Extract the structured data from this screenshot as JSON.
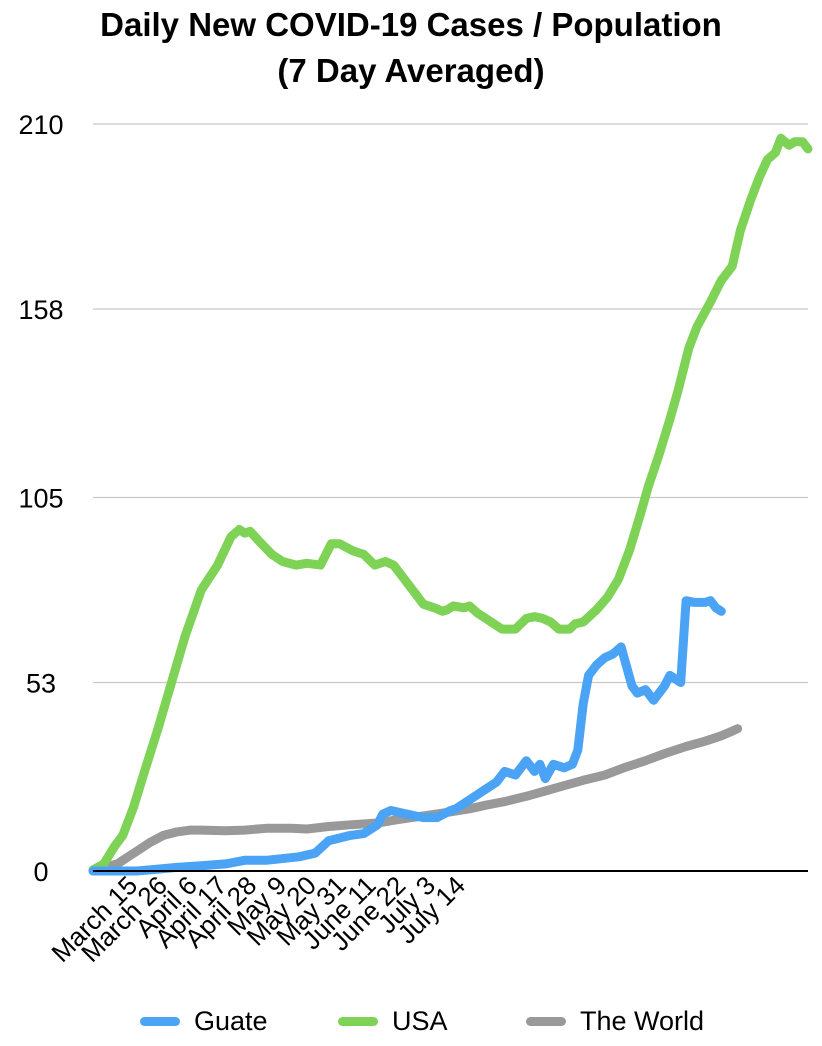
{
  "chart_data": {
    "type": "line",
    "title_line1": "Daily New COVID-19 Cases / Population",
    "title_line2": "(7 Day Averaged)",
    "y_ticks": [
      "0",
      "53",
      "105",
      "158",
      "210"
    ],
    "ylim": [
      0,
      210
    ],
    "x_tick_labels": [
      "March 15",
      "March 26",
      "April 6",
      "April 17",
      "April 28",
      "May 9",
      "May 20",
      "May 31",
      "June 11",
      "June 22",
      "July 3",
      "July 14"
    ],
    "grid": true,
    "legend_position": "bottom",
    "series": [
      {
        "name": "Guate",
        "color": "#4aa3f5",
        "values": [
          [
            0,
            0
          ],
          [
            9,
            0
          ],
          [
            16,
            0
          ],
          [
            21,
            0.3
          ],
          [
            31,
            1
          ],
          [
            40,
            1.5
          ],
          [
            49,
            2
          ],
          [
            56,
            3
          ],
          [
            64,
            3
          ],
          [
            76,
            4
          ],
          [
            82,
            5
          ],
          [
            87,
            8.5
          ],
          [
            95,
            10
          ],
          [
            100,
            10.5
          ],
          [
            105,
            13
          ],
          [
            107,
            16
          ],
          [
            110,
            17
          ],
          [
            116,
            16
          ],
          [
            122,
            15
          ],
          [
            127,
            15
          ],
          [
            132,
            17
          ],
          [
            134,
            17.5
          ],
          [
            139,
            20
          ],
          [
            143,
            22
          ],
          [
            145,
            23
          ],
          [
            149,
            25
          ],
          [
            152,
            28
          ],
          [
            156,
            27
          ],
          [
            160,
            31
          ],
          [
            163,
            28
          ],
          [
            165,
            30
          ],
          [
            167,
            26
          ],
          [
            170,
            30
          ],
          [
            174,
            29
          ],
          [
            177,
            30
          ],
          [
            179,
            34
          ],
          [
            181,
            47
          ],
          [
            183,
            55
          ],
          [
            186,
            58
          ],
          [
            189,
            60
          ],
          [
            192,
            61
          ],
          [
            195,
            63
          ],
          [
            199,
            52
          ],
          [
            201,
            50
          ],
          [
            204,
            51
          ],
          [
            207,
            48
          ],
          [
            211,
            52
          ],
          [
            213,
            55
          ],
          [
            217,
            53
          ],
          [
            219,
            76
          ],
          [
            222,
            75.5
          ],
          [
            226,
            75.5
          ],
          [
            228,
            76
          ],
          [
            230,
            74
          ],
          [
            232,
            73
          ]
        ]
      },
      {
        "name": "USA",
        "color": "#7ed256",
        "values": [
          [
            0,
            0.3
          ],
          [
            4,
            2
          ],
          [
            8,
            7
          ],
          [
            11,
            10
          ],
          [
            15,
            18
          ],
          [
            19,
            28
          ],
          [
            24,
            40
          ],
          [
            29,
            53
          ],
          [
            34,
            66
          ],
          [
            40,
            79
          ],
          [
            46,
            86
          ],
          [
            51,
            94
          ],
          [
            54,
            96
          ],
          [
            56,
            95
          ],
          [
            58,
            95.5
          ],
          [
            61,
            93
          ],
          [
            66,
            89
          ],
          [
            70,
            87
          ],
          [
            75,
            86
          ],
          [
            79,
            86.5
          ],
          [
            84,
            86
          ],
          [
            88,
            92
          ],
          [
            91,
            92
          ],
          [
            96,
            90
          ],
          [
            100,
            89
          ],
          [
            104,
            86
          ],
          [
            108,
            87
          ],
          [
            111,
            86
          ],
          [
            114,
            83
          ],
          [
            119,
            78
          ],
          [
            122,
            75
          ],
          [
            126,
            74
          ],
          [
            129,
            73
          ],
          [
            131,
            73.5
          ],
          [
            133,
            74.5
          ],
          [
            137,
            74
          ],
          [
            139,
            74.5
          ],
          [
            142,
            72.5
          ],
          [
            145,
            71
          ],
          [
            148,
            69.5
          ],
          [
            151,
            68
          ],
          [
            156,
            68
          ],
          [
            160,
            71
          ],
          [
            163,
            71.5
          ],
          [
            166,
            71
          ],
          [
            169,
            70
          ],
          [
            172,
            68
          ],
          [
            176,
            68
          ],
          [
            178,
            69.5
          ],
          [
            181,
            70
          ],
          [
            186,
            73.5
          ],
          [
            190,
            77
          ],
          [
            194,
            82
          ],
          [
            198,
            90
          ],
          [
            202,
            100
          ],
          [
            205,
            108
          ],
          [
            209,
            117
          ],
          [
            213,
            127
          ],
          [
            216,
            135
          ],
          [
            220,
            147
          ],
          [
            223,
            153
          ],
          [
            228,
            160
          ],
          [
            232,
            166
          ],
          [
            236,
            170
          ],
          [
            239,
            180
          ],
          [
            243,
            189
          ],
          [
            246,
            195
          ],
          [
            249,
            200
          ],
          [
            252,
            202
          ],
          [
            254,
            206
          ],
          [
            257,
            204
          ],
          [
            259,
            205
          ],
          [
            262,
            205
          ],
          [
            264,
            203
          ]
        ]
      },
      {
        "name": "The World",
        "color": "#999999",
        "values": [
          [
            0,
            0
          ],
          [
            4,
            1
          ],
          [
            9,
            2
          ],
          [
            13,
            4
          ],
          [
            17,
            6
          ],
          [
            21,
            8
          ],
          [
            26,
            10
          ],
          [
            31,
            11
          ],
          [
            36,
            11.5
          ],
          [
            40,
            11.5
          ],
          [
            49,
            11.3
          ],
          [
            56,
            11.5
          ],
          [
            64,
            12
          ],
          [
            73,
            12
          ],
          [
            79,
            11.8
          ],
          [
            87,
            12.5
          ],
          [
            95,
            13
          ],
          [
            105,
            13.5
          ],
          [
            113,
            14.5
          ],
          [
            122,
            15.5
          ],
          [
            131,
            16.5
          ],
          [
            139,
            17.5
          ],
          [
            145,
            18.5
          ],
          [
            152,
            19.5
          ],
          [
            160,
            21
          ],
          [
            167,
            22.5
          ],
          [
            174,
            24
          ],
          [
            181,
            25.5
          ],
          [
            189,
            27
          ],
          [
            196,
            29
          ],
          [
            204,
            31
          ],
          [
            211,
            33
          ],
          [
            219,
            35
          ],
          [
            226,
            36.5
          ],
          [
            232,
            38
          ],
          [
            235,
            39
          ],
          [
            238,
            40
          ]
        ]
      }
    ]
  }
}
